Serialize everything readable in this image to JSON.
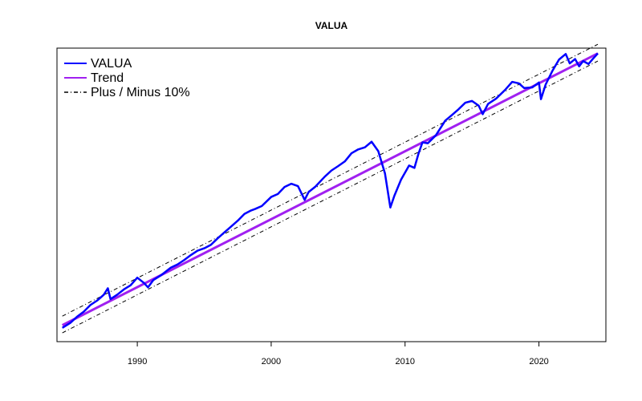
{
  "chart_data": {
    "type": "line",
    "title": "VALUA",
    "xlabel": "",
    "ylabel": "",
    "xlim": [
      1984.0,
      2025.0
    ],
    "ylim": [
      0.0,
      1.0
    ],
    "y_ticks_shown": false,
    "x_ticks": [
      1990,
      2000,
      2010,
      2020
    ],
    "x_tick_labels": [
      "1990",
      "2000",
      "2010",
      "2020"
    ],
    "legend_position": "top-left",
    "legend": [
      {
        "label": "VALUA",
        "color": "#0000ff",
        "style": "solid"
      },
      {
        "label": "Trend",
        "color": "#a020f0",
        "style": "solid"
      },
      {
        "label": "Plus / Minus 10%",
        "color": "#000000",
        "style": "dashdot"
      }
    ],
    "series": [
      {
        "name": "VALUA",
        "color": "#0000ff",
        "x": [
          1984.4,
          1985.0,
          1985.5,
          1986.0,
          1986.5,
          1987.0,
          1987.5,
          1987.8,
          1988.0,
          1988.5,
          1989.0,
          1989.5,
          1990.0,
          1990.5,
          1990.8,
          1991.2,
          1991.8,
          1992.5,
          1993.0,
          1993.5,
          1994.0,
          1994.5,
          1995.0,
          1995.5,
          1996.0,
          1996.5,
          1997.0,
          1997.5,
          1998.0,
          1998.5,
          1998.8,
          1999.3,
          2000.0,
          2000.5,
          2001.0,
          2001.5,
          2002.0,
          2002.5,
          2002.8,
          2003.3,
          2004.0,
          2004.5,
          2005.0,
          2005.5,
          2006.0,
          2006.5,
          2007.0,
          2007.5,
          2008.0,
          2008.5,
          2008.9,
          2009.2,
          2009.7,
          2010.3,
          2010.7,
          2011.0,
          2011.3,
          2011.7,
          2012.3,
          2013.0,
          2013.5,
          2014.0,
          2014.5,
          2015.0,
          2015.5,
          2015.8,
          2016.2,
          2016.8,
          2017.5,
          2018.0,
          2018.5,
          2018.9,
          2019.5,
          2020.0,
          2020.15,
          2020.5,
          2021.0,
          2021.5,
          2022.0,
          2022.3,
          2022.7,
          2023.0,
          2023.3,
          2023.7,
          2024.0,
          2024.4
        ],
        "y": [
          0.047,
          0.064,
          0.085,
          0.102,
          0.125,
          0.14,
          0.16,
          0.182,
          0.145,
          0.16,
          0.178,
          0.192,
          0.218,
          0.2,
          0.185,
          0.21,
          0.227,
          0.252,
          0.263,
          0.278,
          0.295,
          0.31,
          0.318,
          0.33,
          0.352,
          0.372,
          0.392,
          0.412,
          0.435,
          0.447,
          0.452,
          0.462,
          0.493,
          0.503,
          0.527,
          0.538,
          0.53,
          0.483,
          0.51,
          0.528,
          0.562,
          0.583,
          0.598,
          0.614,
          0.642,
          0.655,
          0.662,
          0.681,
          0.649,
          0.573,
          0.457,
          0.497,
          0.552,
          0.6,
          0.592,
          0.64,
          0.679,
          0.676,
          0.703,
          0.753,
          0.772,
          0.792,
          0.814,
          0.82,
          0.804,
          0.775,
          0.81,
          0.828,
          0.859,
          0.885,
          0.88,
          0.864,
          0.866,
          0.883,
          0.826,
          0.876,
          0.922,
          0.961,
          0.98,
          0.948,
          0.963,
          0.938,
          0.956,
          0.946,
          0.962,
          0.982
        ]
      },
      {
        "name": "Trend",
        "color": "#a020f0",
        "x": [
          1984.4,
          2024.4
        ],
        "y": [
          0.056,
          0.982
        ]
      },
      {
        "name": "Plus / Minus 10%",
        "color": "#000000",
        "x": [
          1984.4,
          2024.4
        ],
        "y_upper": [
          0.087,
          1.013
        ],
        "y_lower": [
          0.03,
          0.956
        ]
      }
    ]
  }
}
